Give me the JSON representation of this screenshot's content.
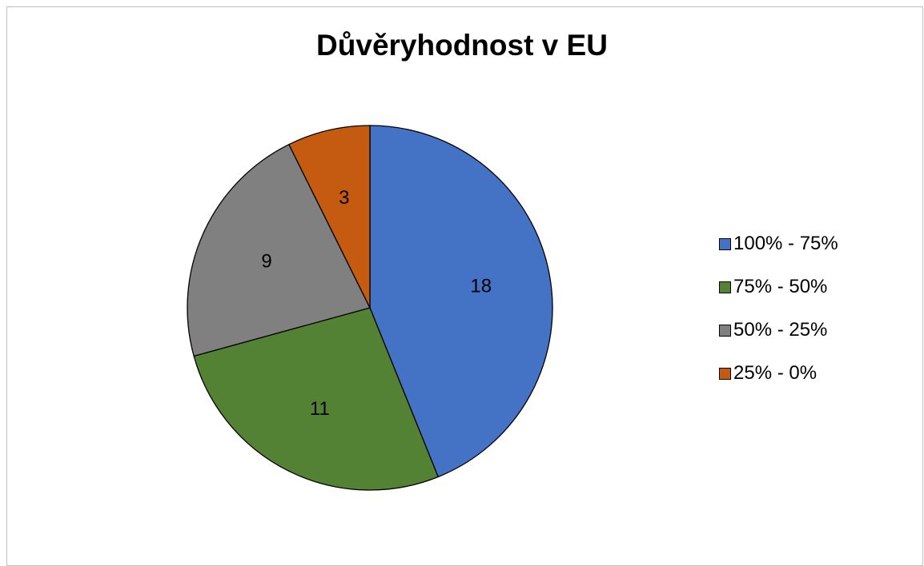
{
  "chart_data": {
    "type": "pie",
    "title": "Důvěryhodnost v EU",
    "categories": [
      "100% - 75%",
      "75% - 50%",
      "50% - 25%",
      "25% - 0%"
    ],
    "values": [
      18,
      11,
      9,
      3
    ],
    "colors": [
      "#4472C4",
      "#548235",
      "#808080",
      "#C55A11"
    ],
    "data_labels": [
      "18",
      "11",
      "9",
      "3"
    ],
    "legend_position": "right",
    "start_angle": "top, clockwise"
  }
}
